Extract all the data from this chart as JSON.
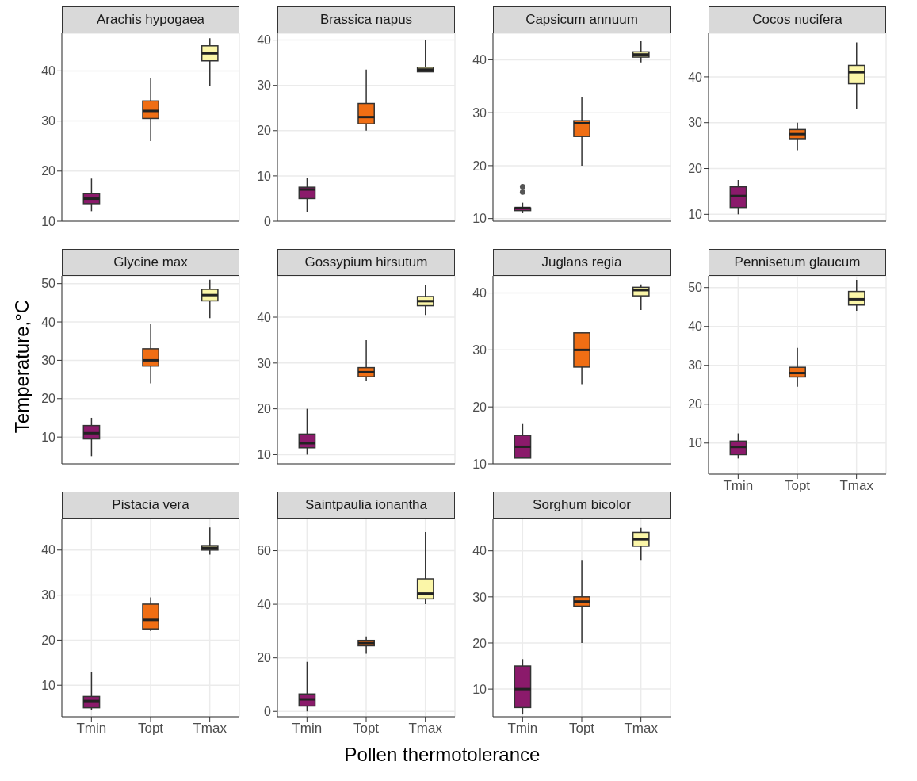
{
  "chart_data": [
    {
      "type": "box",
      "title": "Arachis hypogaea",
      "ylabel": "Temperature,°C",
      "xlabel": "Pollen thermotolerance",
      "colors": [
        "#8b1a6b",
        "#f06e14",
        "#fbf6a8"
      ],
      "ylim": [
        10,
        47.5
      ],
      "yticks": [
        10,
        20,
        30,
        40
      ],
      "grid": true,
      "tick_labels": "y",
      "boxes": [
        {
          "low": 12,
          "q1": 13.5,
          "median": 14.5,
          "q3": 15.5,
          "high": 18.5
        },
        {
          "low": 26,
          "q1": 30.5,
          "median": 32,
          "q3": 34,
          "high": 38.5
        },
        {
          "low": 37,
          "q1": 42,
          "median": 43.5,
          "q3": 45,
          "high": 46.5
        }
      ]
    },
    {
      "type": "box",
      "title": "Brassica napus",
      "colors": [
        "#8b1a6b",
        "#f06e14",
        "#fbf6a8"
      ],
      "ylim": [
        0,
        41.5
      ],
      "yticks": [
        0,
        10,
        20,
        30,
        40
      ],
      "grid": true,
      "tick_labels": "y",
      "boxes": [
        {
          "low": 2,
          "q1": 5,
          "median": 7,
          "q3": 7.5,
          "high": 9.5
        },
        {
          "low": 20,
          "q1": 21.5,
          "median": 23,
          "q3": 26,
          "high": 33.5
        },
        {
          "low": 33,
          "q1": 33,
          "median": 33.5,
          "q3": 34,
          "high": 40
        }
      ]
    },
    {
      "type": "box",
      "title": "Capsicum annuum",
      "colors": [
        "#8b1a6b",
        "#f06e14",
        "#fbf6a8"
      ],
      "ylim": [
        9.5,
        45
      ],
      "yticks": [
        10,
        20,
        30,
        40
      ],
      "grid": true,
      "tick_labels": "y",
      "boxes": [
        {
          "low": 11,
          "q1": 11.5,
          "median": 12,
          "q3": 12,
          "high": 13,
          "outliers": [
            15,
            16
          ]
        },
        {
          "low": 20,
          "q1": 25.5,
          "median": 28,
          "q3": 28.5,
          "high": 33
        },
        {
          "low": 39.5,
          "q1": 40.5,
          "median": 41,
          "q3": 41.5,
          "high": 43.5
        }
      ]
    },
    {
      "type": "box",
      "title": "Cocos nucifera",
      "colors": [
        "#8b1a6b",
        "#f06e14",
        "#fbf6a8"
      ],
      "ylim": [
        8.5,
        49.5
      ],
      "yticks": [
        10,
        20,
        30,
        40
      ],
      "grid": true,
      "tick_labels": "y",
      "boxes": [
        {
          "low": 10,
          "q1": 11.5,
          "median": 14,
          "q3": 16,
          "high": 17.5
        },
        {
          "low": 24,
          "q1": 26.5,
          "median": 27.5,
          "q3": 28.5,
          "high": 30
        },
        {
          "low": 33,
          "q1": 38.5,
          "median": 41,
          "q3": 42.5,
          "high": 47.5
        }
      ]
    },
    {
      "type": "box",
      "title": "Glycine max",
      "colors": [
        "#8b1a6b",
        "#f06e14",
        "#fbf6a8"
      ],
      "ylim": [
        3,
        52
      ],
      "yticks": [
        10,
        20,
        30,
        40,
        50
      ],
      "grid": true,
      "tick_labels": "y",
      "boxes": [
        {
          "low": 5,
          "q1": 9.5,
          "median": 11,
          "q3": 13,
          "high": 15
        },
        {
          "low": 24,
          "q1": 28.5,
          "median": 30,
          "q3": 33,
          "high": 39.5
        },
        {
          "low": 41,
          "q1": 45.5,
          "median": 47,
          "q3": 48.5,
          "high": 51
        }
      ]
    },
    {
      "type": "box",
      "title": "Gossypium hirsutum",
      "colors": [
        "#8b1a6b",
        "#f06e14",
        "#fbf6a8"
      ],
      "ylim": [
        8,
        49
      ],
      "yticks": [
        10,
        20,
        30,
        40
      ],
      "grid": true,
      "tick_labels": "y",
      "boxes": [
        {
          "low": 10,
          "q1": 11.5,
          "median": 12.5,
          "q3": 14.5,
          "high": 20
        },
        {
          "low": 26,
          "q1": 27,
          "median": 28,
          "q3": 29,
          "high": 35
        },
        {
          "low": 40.5,
          "q1": 42.5,
          "median": 43.5,
          "q3": 44.5,
          "high": 47
        }
      ]
    },
    {
      "type": "box",
      "title": "Juglans regia",
      "colors": [
        "#8b1a6b",
        "#f06e14",
        "#fbf6a8"
      ],
      "ylim": [
        10,
        43
      ],
      "yticks": [
        10,
        20,
        30,
        40
      ],
      "grid": true,
      "tick_labels": "y",
      "boxes": [
        {
          "low": 11,
          "q1": 11,
          "median": 13,
          "q3": 15,
          "high": 17
        },
        {
          "low": 24,
          "q1": 27,
          "median": 30,
          "q3": 33,
          "high": 33
        },
        {
          "low": 37,
          "q1": 39.5,
          "median": 40.5,
          "q3": 41,
          "high": 41.5
        }
      ]
    },
    {
      "type": "box",
      "title": "Pennisetum glaucum",
      "categories": [
        "Tmin",
        "Topt",
        "Tmax"
      ],
      "colors": [
        "#8b1a6b",
        "#f06e14",
        "#fbf6a8"
      ],
      "ylim": [
        2,
        53
      ],
      "yticks": [
        10,
        20,
        30,
        40,
        50
      ],
      "grid": true,
      "boxes": [
        {
          "low": 6,
          "q1": 7,
          "median": 9,
          "q3": 10.5,
          "high": 12.5
        },
        {
          "low": 24.5,
          "q1": 27,
          "median": 28,
          "q3": 29.5,
          "high": 34.5
        },
        {
          "low": 44,
          "q1": 45.5,
          "median": 47,
          "q3": 49,
          "high": 52
        }
      ]
    },
    {
      "type": "box",
      "title": "Pistacia vera",
      "categories": [
        "Tmin",
        "Topt",
        "Tmax"
      ],
      "colors": [
        "#8b1a6b",
        "#f06e14",
        "#fbf6a8"
      ],
      "ylim": [
        3,
        47
      ],
      "yticks": [
        10,
        20,
        30,
        40
      ],
      "grid": true,
      "boxes": [
        {
          "low": 4.5,
          "q1": 5,
          "median": 6.5,
          "q3": 7.5,
          "high": 13
        },
        {
          "low": 22,
          "q1": 22.5,
          "median": 24.5,
          "q3": 28,
          "high": 29.5
        },
        {
          "low": 39,
          "q1": 40,
          "median": 40.5,
          "q3": 41,
          "high": 45
        }
      ]
    },
    {
      "type": "box",
      "title": "Saintpaulia ionantha",
      "categories": [
        "Tmin",
        "Topt",
        "Tmax"
      ],
      "colors": [
        "#8b1a6b",
        "#f06e14",
        "#fbf6a8"
      ],
      "ylim": [
        -2,
        72
      ],
      "yticks": [
        0,
        20,
        40,
        60
      ],
      "grid": true,
      "boxes": [
        {
          "low": 0,
          "q1": 2,
          "median": 4.5,
          "q3": 6.5,
          "high": 18.5
        },
        {
          "low": 21.5,
          "q1": 24.5,
          "median": 25.5,
          "q3": 26.5,
          "high": 28
        },
        {
          "low": 40,
          "q1": 42,
          "median": 44,
          "q3": 49.5,
          "high": 67
        }
      ]
    },
    {
      "type": "box",
      "title": "Sorghum bicolor",
      "categories": [
        "Tmin",
        "Topt",
        "Tmax"
      ],
      "colors": [
        "#8b1a6b",
        "#f06e14",
        "#fbf6a8"
      ],
      "ylim": [
        4,
        47
      ],
      "yticks": [
        10,
        20,
        30,
        40
      ],
      "grid": true,
      "boxes": [
        {
          "low": 4.5,
          "q1": 6,
          "median": 10,
          "q3": 15,
          "high": 16.5
        },
        {
          "low": 20,
          "q1": 28,
          "median": 29,
          "q3": 30,
          "high": 38
        },
        {
          "low": 38,
          "q1": 41,
          "median": 42.5,
          "q3": 44,
          "high": 45
        }
      ]
    }
  ]
}
